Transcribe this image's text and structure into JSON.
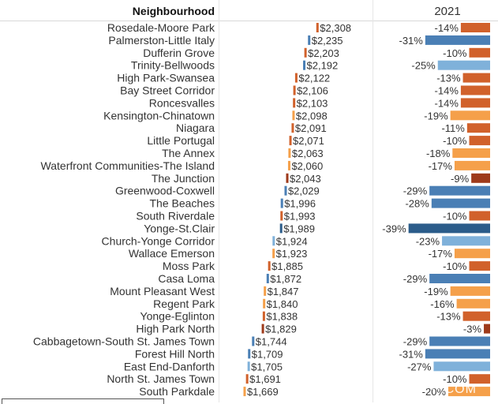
{
  "header": {
    "col1": "Neighbourhood",
    "col3": "2021"
  },
  "watermark": "²⁰²⁰²¹.COM",
  "colors": {
    "dark_blue": "#2b5c8a",
    "mid_blue": "#4a7fb5",
    "light_blue": "#7fb1da",
    "dark_orange": "#d1612b",
    "light_orange": "#f5a04a",
    "brown": "#9e3a1a"
  },
  "chart_data": [
    {
      "type": "bar",
      "title": "",
      "xlabel": "",
      "ylabel": "",
      "categories": [
        "Rosedale-Moore Park",
        "Palmerston-Little Italy",
        "Dufferin Grove",
        "Trinity-Bellwoods",
        "High Park-Swansea",
        "Bay Street Corridor",
        "Roncesvalles",
        "Kensington-Chinatown",
        "Niagara",
        "Little Portugal",
        "The Annex",
        "Waterfront Communities-The Island",
        "The Junction",
        "Greenwood-Coxwell",
        "The Beaches",
        "South Riverdale",
        "Yonge-St.Clair",
        "Church-Yonge Corridor",
        "Wallace Emerson",
        "Moss Park",
        "Casa Loma",
        "Mount Pleasant West",
        "Regent Park",
        "Yonge-Eglinton",
        "High Park North",
        "Cabbagetown-South St. James Town",
        "Forest Hill North",
        "East End-Danforth",
        "North St. James Town",
        "South Parkdale"
      ],
      "values": [
        2308,
        2235,
        2203,
        2192,
        2122,
        2106,
        2103,
        2098,
        2091,
        2071,
        2063,
        2060,
        2043,
        2029,
        1996,
        1993,
        1989,
        1924,
        1923,
        1885,
        1872,
        1847,
        1840,
        1838,
        1829,
        1744,
        1709,
        1705,
        1691,
        1669
      ],
      "value_labels": [
        "$2,308",
        "$2,235",
        "$2,203",
        "$2,192",
        "$2,122",
        "$2,106",
        "$2,103",
        "$2,098",
        "$2,091",
        "$2,071",
        "$2,063",
        "$2,060",
        "$2,043",
        "$2,029",
        "$1,996",
        "$1,993",
        "$1,989",
        "$1,924",
        "$1,923",
        "$1,885",
        "$1,872",
        "$1,847",
        "$1,840",
        "$1,838",
        "$1,829",
        "$1,744",
        "$1,709",
        "$1,705",
        "$1,691",
        "$1,669"
      ],
      "mark_colors": [
        "dark_orange",
        "mid_blue",
        "dark_orange",
        "mid_blue",
        "dark_orange",
        "dark_orange",
        "dark_orange",
        "light_orange",
        "dark_orange",
        "dark_orange",
        "light_orange",
        "light_orange",
        "brown",
        "mid_blue",
        "mid_blue",
        "dark_orange",
        "dark_blue",
        "light_blue",
        "light_orange",
        "dark_orange",
        "mid_blue",
        "light_orange",
        "light_orange",
        "dark_orange",
        "brown",
        "mid_blue",
        "mid_blue",
        "light_blue",
        "dark_orange",
        "light_orange"
      ]
    },
    {
      "type": "bar",
      "title": "2021",
      "xlabel": "",
      "ylabel": "",
      "categories": [
        "Rosedale-Moore Park",
        "Palmerston-Little Italy",
        "Dufferin Grove",
        "Trinity-Bellwoods",
        "High Park-Swansea",
        "Bay Street Corridor",
        "Roncesvalles",
        "Kensington-Chinatown",
        "Niagara",
        "Little Portugal",
        "The Annex",
        "Waterfront Communities-The Island",
        "The Junction",
        "Greenwood-Coxwell",
        "The Beaches",
        "South Riverdale",
        "Yonge-St.Clair",
        "Church-Yonge Corridor",
        "Wallace Emerson",
        "Moss Park",
        "Casa Loma",
        "Mount Pleasant West",
        "Regent Park",
        "Yonge-Eglinton",
        "High Park North",
        "Cabbagetown-South St. James Town",
        "Forest Hill North",
        "East End-Danforth",
        "North St. James Town",
        "South Parkdale"
      ],
      "values": [
        -14,
        -31,
        -10,
        -25,
        -13,
        -14,
        -14,
        -19,
        -11,
        -10,
        -18,
        -17,
        -9,
        -29,
        -28,
        -10,
        -39,
        -23,
        -17,
        -10,
        -29,
        -19,
        -16,
        -13,
        -3,
        -29,
        -31,
        -27,
        -10,
        -20
      ],
      "value_labels": [
        "-14%",
        "-31%",
        "-10%",
        "-25%",
        "-13%",
        "-14%",
        "-14%",
        "-19%",
        "-11%",
        "-10%",
        "-18%",
        "-17%",
        "-9%",
        "-29%",
        "-28%",
        "-10%",
        "-39%",
        "-23%",
        "-17%",
        "-10%",
        "-29%",
        "-19%",
        "-16%",
        "-13%",
        "-3%",
        "-29%",
        "-31%",
        "-27%",
        "-10%",
        "-20%"
      ],
      "bar_colors": [
        "dark_orange",
        "mid_blue",
        "dark_orange",
        "light_blue",
        "dark_orange",
        "dark_orange",
        "dark_orange",
        "light_orange",
        "dark_orange",
        "dark_orange",
        "light_orange",
        "light_orange",
        "brown",
        "mid_blue",
        "mid_blue",
        "dark_orange",
        "dark_blue",
        "light_blue",
        "light_orange",
        "dark_orange",
        "mid_blue",
        "light_orange",
        "light_orange",
        "dark_orange",
        "brown",
        "mid_blue",
        "mid_blue",
        "light_blue",
        "dark_orange",
        "light_orange"
      ]
    }
  ]
}
